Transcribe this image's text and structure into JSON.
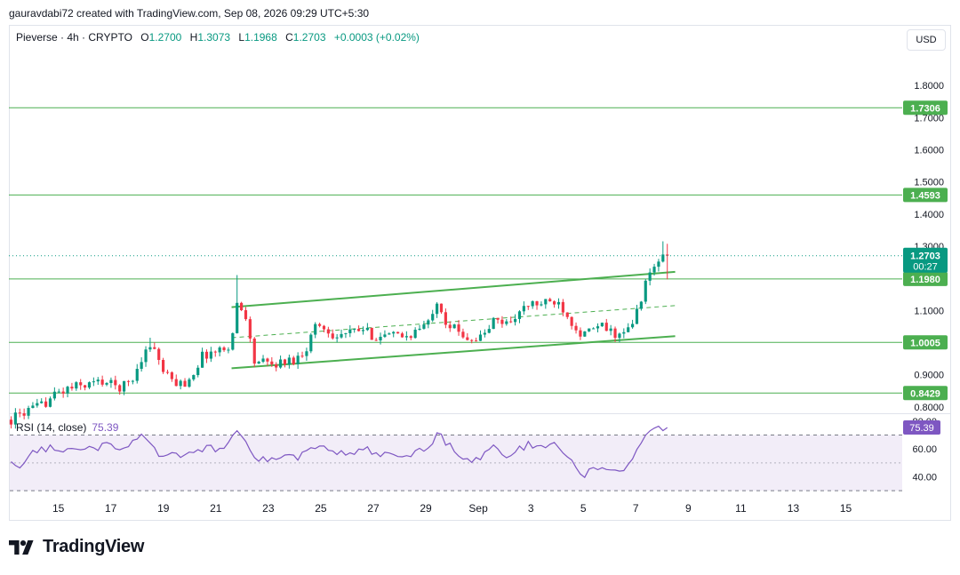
{
  "header": {
    "credit": "gauravdabi72 created with TradingView.com, Sep 08, 2026 09:29 UTC+5:30"
  },
  "legend": {
    "symbol": "Pieverse · 4h · CRYPTO",
    "open_label": "O",
    "open": "1.2700",
    "high_label": "H",
    "high": "1.3073",
    "low_label": "L",
    "low": "1.1968",
    "close_label": "C",
    "close": "1.2703",
    "change": "+0.0003 (+0.02%)"
  },
  "currency_button": "USD",
  "brand": {
    "name": "TradingView"
  },
  "colors": {
    "up": "#089981",
    "down": "#f23645",
    "level": "#4caf50",
    "rsi": "#7e57c2",
    "rsi_band": "#ede7f6"
  },
  "chart_data": [
    {
      "type": "candlestick",
      "title": "",
      "y_ticks": [
        "0.8000",
        "0.9000",
        "1.0000",
        "1.1000",
        "1.2000",
        "1.3000",
        "1.4000",
        "1.5000",
        "1.6000",
        "1.7000",
        "1.8000"
      ],
      "ylim": [
        0.78,
        1.9
      ],
      "x_ticks": [
        {
          "label": "15",
          "x": 0.7
        },
        {
          "label": "17",
          "x": 2.7
        },
        {
          "label": "19",
          "x": 4.7
        },
        {
          "label": "21",
          "x": 6.7
        },
        {
          "label": "23",
          "x": 8.7
        },
        {
          "label": "25",
          "x": 10.7
        },
        {
          "label": "27",
          "x": 12.7
        },
        {
          "label": "29",
          "x": 14.7
        },
        {
          "label": "Sep",
          "x": 16.7
        },
        {
          "label": "3",
          "x": 18.7
        },
        {
          "label": "5",
          "x": 20.7
        },
        {
          "label": "7",
          "x": 22.7
        },
        {
          "label": "9",
          "x": 24.7
        },
        {
          "label": "11",
          "x": 26.7
        },
        {
          "label": "13",
          "x": 28.7
        },
        {
          "label": "15",
          "x": 30.7
        }
      ],
      "xlim": [
        -1.15,
        32.85
      ],
      "horizontal_levels": [
        "1.7306",
        "1.4593",
        "1.1980",
        "1.0005",
        "0.8429"
      ],
      "current_price": {
        "value": "1.2703",
        "countdown": "00:27"
      },
      "channel": {
        "upper": [
          [
            7.3,
            1.11
          ],
          [
            24.2,
            1.22
          ]
        ],
        "lower": [
          [
            7.3,
            0.92
          ],
          [
            24.2,
            1.02
          ]
        ],
        "mid": [
          [
            7.3,
            1.015
          ],
          [
            24.2,
            1.115
          ]
        ]
      },
      "anchors": [
        [
          -1.1,
          0.76
        ],
        [
          -0.7,
          0.78
        ],
        [
          0.0,
          0.8
        ],
        [
          0.6,
          0.84
        ],
        [
          1.2,
          0.86
        ],
        [
          1.8,
          0.87
        ],
        [
          2.4,
          0.88
        ],
        [
          3.0,
          0.86
        ],
        [
          3.5,
          0.88
        ],
        [
          3.9,
          0.96
        ],
        [
          4.3,
          1.0
        ],
        [
          4.6,
          0.92
        ],
        [
          5.0,
          0.88
        ],
        [
          5.5,
          0.87
        ],
        [
          5.8,
          0.9
        ],
        [
          6.2,
          0.96
        ],
        [
          6.6,
          0.97
        ],
        [
          7.0,
          0.98
        ],
        [
          7.3,
          1.0
        ],
        [
          7.5,
          1.12
        ],
        [
          7.7,
          1.1
        ],
        [
          7.9,
          1.08
        ],
        [
          8.1,
          0.94
        ],
        [
          8.4,
          0.94
        ],
        [
          8.8,
          0.93
        ],
        [
          9.3,
          0.94
        ],
        [
          9.8,
          0.95
        ],
        [
          10.2,
          0.99
        ],
        [
          10.5,
          1.06
        ],
        [
          10.9,
          1.04
        ],
        [
          11.3,
          1.02
        ],
        [
          11.8,
          1.03
        ],
        [
          12.3,
          1.04
        ],
        [
          12.7,
          1.02
        ],
        [
          13.1,
          1.02
        ],
        [
          13.6,
          1.02
        ],
        [
          14.0,
          1.02
        ],
        [
          14.4,
          1.04
        ],
        [
          14.8,
          1.06
        ],
        [
          15.1,
          1.14
        ],
        [
          15.5,
          1.06
        ],
        [
          16.0,
          1.03
        ],
        [
          16.5,
          1.01
        ],
        [
          16.9,
          1.02
        ],
        [
          17.3,
          1.07
        ],
        [
          17.8,
          1.06
        ],
        [
          18.2,
          1.09
        ],
        [
          18.7,
          1.12
        ],
        [
          19.2,
          1.12
        ],
        [
          19.7,
          1.13
        ],
        [
          20.0,
          1.1
        ],
        [
          20.3,
          1.06
        ],
        [
          20.7,
          1.02
        ],
        [
          21.0,
          1.04
        ],
        [
          21.4,
          1.05
        ],
        [
          21.8,
          1.03
        ],
        [
          22.2,
          1.02
        ],
        [
          22.6,
          1.06
        ],
        [
          22.9,
          1.14
        ],
        [
          23.2,
          1.21
        ],
        [
          23.5,
          1.25
        ],
        [
          23.9,
          1.2703
        ]
      ]
    },
    {
      "type": "line",
      "title": "",
      "name": "RSI (14, close)",
      "last_value": "75.39",
      "y_ticks": [
        "40.00",
        "60.00",
        "80.00"
      ],
      "ylim": [
        25,
        85
      ],
      "band": [
        30,
        70
      ],
      "mid": 50,
      "anchors": [
        [
          -1.1,
          50
        ],
        [
          -0.7,
          47
        ],
        [
          -0.3,
          58
        ],
        [
          0.4,
          61
        ],
        [
          0.8,
          57
        ],
        [
          1.4,
          62
        ],
        [
          2.0,
          60
        ],
        [
          2.6,
          63
        ],
        [
          3.0,
          58
        ],
        [
          3.5,
          66
        ],
        [
          3.9,
          73
        ],
        [
          4.3,
          60
        ],
        [
          4.6,
          53
        ],
        [
          5.1,
          56
        ],
        [
          5.5,
          53
        ],
        [
          5.9,
          59
        ],
        [
          6.3,
          61
        ],
        [
          6.8,
          60
        ],
        [
          7.2,
          64
        ],
        [
          7.4,
          75
        ],
        [
          7.8,
          66
        ],
        [
          8.2,
          54
        ],
        [
          8.6,
          52
        ],
        [
          9.0,
          53
        ],
        [
          9.4,
          55
        ],
        [
          9.8,
          54
        ],
        [
          10.2,
          58
        ],
        [
          10.6,
          64
        ],
        [
          11.0,
          58
        ],
        [
          11.5,
          57
        ],
        [
          12.0,
          57
        ],
        [
          12.5,
          60
        ],
        [
          12.9,
          55
        ],
        [
          13.5,
          56
        ],
        [
          14.1,
          55
        ],
        [
          14.6,
          60
        ],
        [
          15.0,
          66
        ],
        [
          15.2,
          72
        ],
        [
          15.5,
          64
        ],
        [
          16.0,
          56
        ],
        [
          16.4,
          52
        ],
        [
          16.8,
          53
        ],
        [
          17.2,
          62
        ],
        [
          17.8,
          55
        ],
        [
          18.2,
          59
        ],
        [
          18.6,
          63
        ],
        [
          19.2,
          63
        ],
        [
          19.6,
          64
        ],
        [
          20.0,
          56
        ],
        [
          20.4,
          48
        ],
        [
          20.7,
          40
        ],
        [
          21.0,
          45
        ],
        [
          21.5,
          45
        ],
        [
          21.9,
          43
        ],
        [
          22.3,
          46
        ],
        [
          22.6,
          55
        ],
        [
          22.9,
          64
        ],
        [
          23.2,
          70
        ],
        [
          23.5,
          75
        ],
        [
          23.9,
          75.39
        ]
      ]
    }
  ]
}
